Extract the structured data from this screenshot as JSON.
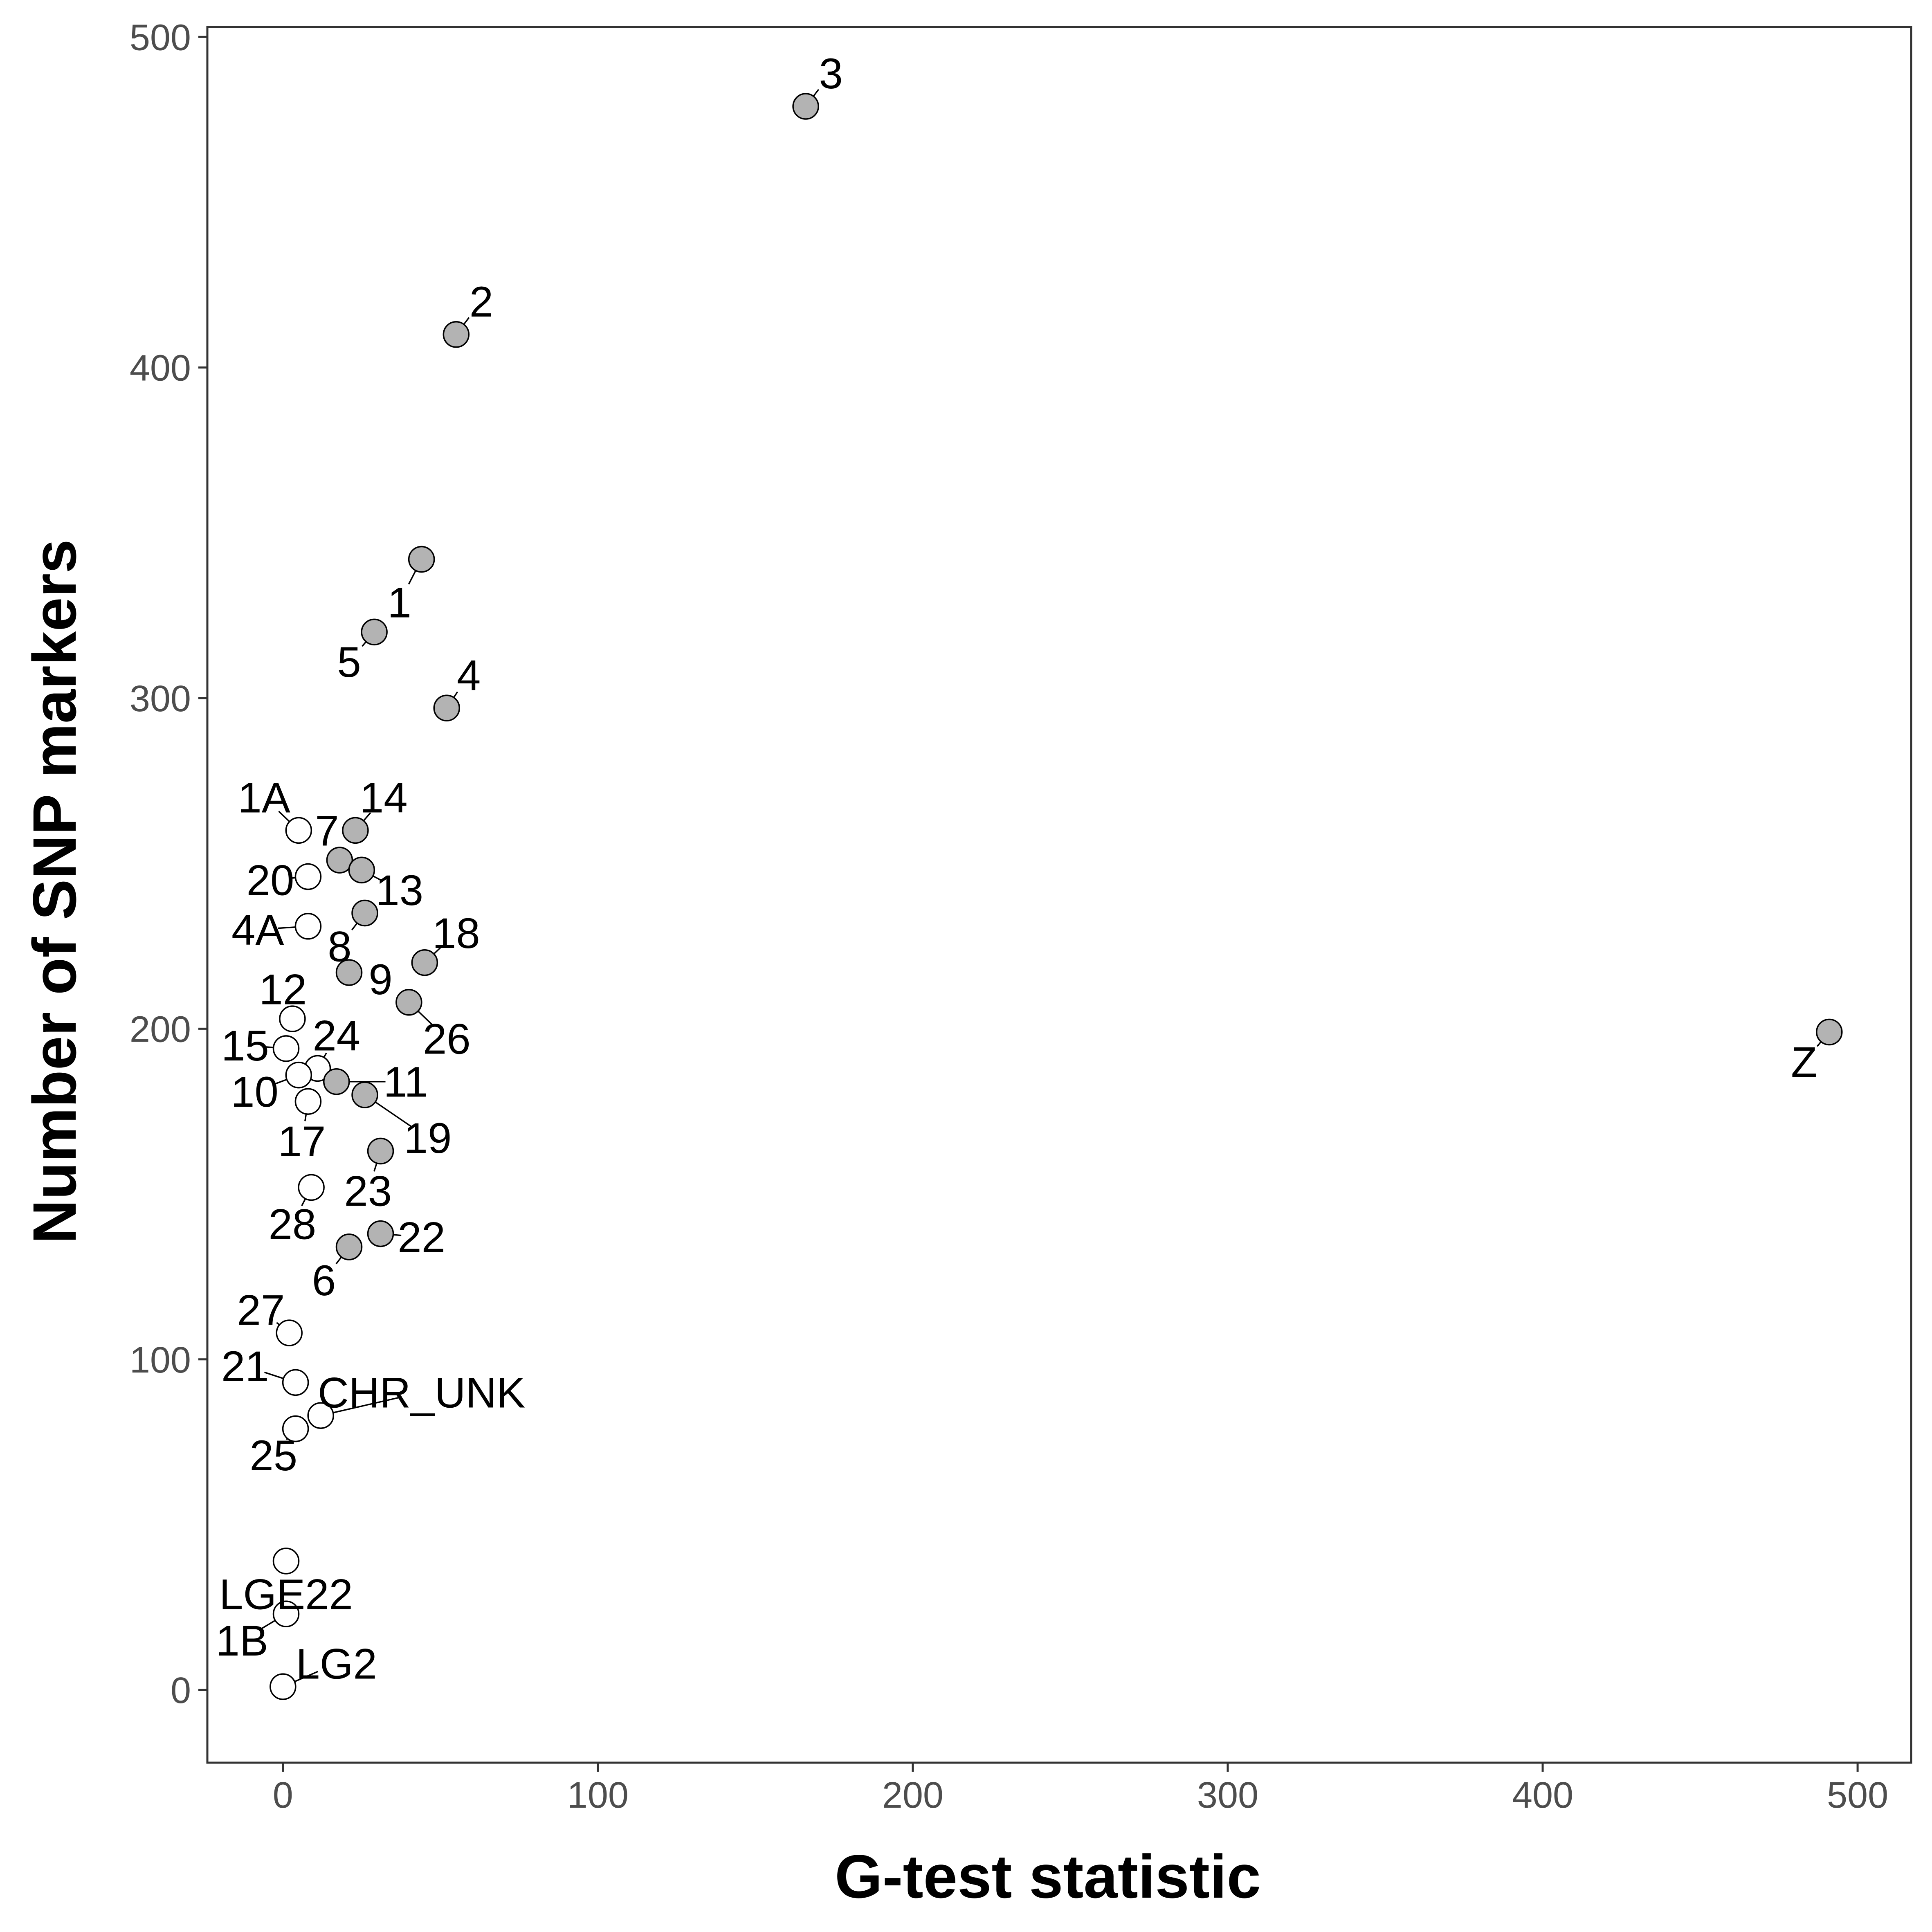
{
  "chart_data": {
    "type": "scatter",
    "title": "",
    "xlabel": "G-test statistic",
    "ylabel": "Number of SNP markers",
    "xlim": [
      -24,
      517
    ],
    "ylim": [
      -22,
      503
    ],
    "xticks": [
      0,
      100,
      200,
      300,
      400,
      500
    ],
    "yticks": [
      0,
      100,
      200,
      300,
      400,
      500
    ],
    "grid": false,
    "legend": "none",
    "fill_colors": {
      "gray": "#b3b3b3",
      "white": "#ffffff"
    },
    "points": [
      {
        "label": "3",
        "x": 166,
        "y": 479,
        "fill": "gray",
        "label_pos": [
          174,
          489
        ]
      },
      {
        "label": "2",
        "x": 55,
        "y": 410,
        "fill": "gray",
        "label_pos": [
          63,
          420
        ]
      },
      {
        "label": "1",
        "x": 44,
        "y": 342,
        "fill": "gray",
        "label_pos": [
          37,
          329
        ]
      },
      {
        "label": "5",
        "x": 29,
        "y": 320,
        "fill": "gray",
        "label_pos": [
          21,
          311
        ]
      },
      {
        "label": "4",
        "x": 52,
        "y": 297,
        "fill": "gray",
        "label_pos": [
          59,
          307
        ]
      },
      {
        "label": "1A",
        "x": 5,
        "y": 260,
        "fill": "white",
        "label_pos": [
          -6,
          270
        ]
      },
      {
        "label": "14",
        "x": 23,
        "y": 260,
        "fill": "gray",
        "label_pos": [
          32,
          270
        ]
      },
      {
        "label": "7",
        "x": 18,
        "y": 251,
        "fill": "gray",
        "label_pos": [
          14,
          260
        ]
      },
      {
        "label": "20",
        "x": 8,
        "y": 246,
        "fill": "white",
        "label_pos": [
          -4,
          245
        ]
      },
      {
        "label": "13",
        "x": 25,
        "y": 248,
        "fill": "gray",
        "label_pos": [
          37,
          242
        ]
      },
      {
        "label": "4A",
        "x": 8,
        "y": 231,
        "fill": "white",
        "label_pos": [
          -8,
          230
        ]
      },
      {
        "label": "8",
        "x": 26,
        "y": 235,
        "fill": "gray",
        "label_pos": [
          18,
          225
        ]
      },
      {
        "label": "18",
        "x": 45,
        "y": 220,
        "fill": "gray",
        "label_pos": [
          55,
          229
        ]
      },
      {
        "label": "9",
        "x": 21,
        "y": 217,
        "fill": "gray",
        "label_pos": [
          31,
          215
        ]
      },
      {
        "label": "26",
        "x": 40,
        "y": 208,
        "fill": "gray",
        "label_pos": [
          52,
          197
        ]
      },
      {
        "label": "12",
        "x": 3,
        "y": 203,
        "fill": "white",
        "label_pos": [
          0,
          212
        ]
      },
      {
        "label": "15",
        "x": 1,
        "y": 194,
        "fill": "white",
        "label_pos": [
          -12,
          195
        ]
      },
      {
        "label": "24",
        "x": 11,
        "y": 188,
        "fill": "white",
        "label_pos": [
          17,
          198
        ]
      },
      {
        "label": "10",
        "x": 5,
        "y": 186,
        "fill": "white",
        "label_pos": [
          -9,
          181
        ]
      },
      {
        "label": "11",
        "x": 17,
        "y": 184,
        "fill": "gray",
        "label_pos": [
          39,
          184
        ]
      },
      {
        "label": "19",
        "x": 26,
        "y": 180,
        "fill": "gray",
        "label_pos": [
          46,
          167
        ]
      },
      {
        "label": "17",
        "x": 8,
        "y": 178,
        "fill": "white",
        "label_pos": [
          6,
          166
        ]
      },
      {
        "label": "23",
        "x": 31,
        "y": 163,
        "fill": "gray",
        "label_pos": [
          27,
          151
        ]
      },
      {
        "label": "28",
        "x": 9,
        "y": 152,
        "fill": "white",
        "label_pos": [
          3,
          141
        ]
      },
      {
        "label": "22",
        "x": 31,
        "y": 138,
        "fill": "gray",
        "label_pos": [
          44,
          137
        ]
      },
      {
        "label": "6",
        "x": 21,
        "y": 134,
        "fill": "gray",
        "label_pos": [
          13,
          124
        ]
      },
      {
        "label": "27",
        "x": 2,
        "y": 108,
        "fill": "white",
        "label_pos": [
          -7,
          115
        ]
      },
      {
        "label": "21",
        "x": 4,
        "y": 93,
        "fill": "white",
        "label_pos": [
          -12,
          98
        ]
      },
      {
        "label": "CHR_UNK",
        "x": 12,
        "y": 83,
        "fill": "white",
        "label_pos": [
          44,
          90
        ]
      },
      {
        "label": "25",
        "x": 4,
        "y": 79,
        "fill": "white",
        "label_pos": [
          -3,
          71
        ]
      },
      {
        "label": "LGE22",
        "x": 1,
        "y": 39,
        "fill": "white",
        "label_pos": [
          1,
          29
        ]
      },
      {
        "label": "1B",
        "x": 1,
        "y": 23,
        "fill": "white",
        "label_pos": [
          -13,
          15
        ]
      },
      {
        "label": "LG2",
        "x": 0,
        "y": 1,
        "fill": "white",
        "label_pos": [
          17,
          8
        ]
      },
      {
        "label": "Z",
        "x": 491,
        "y": 199,
        "fill": "gray",
        "label_pos": [
          483,
          190
        ]
      }
    ]
  }
}
